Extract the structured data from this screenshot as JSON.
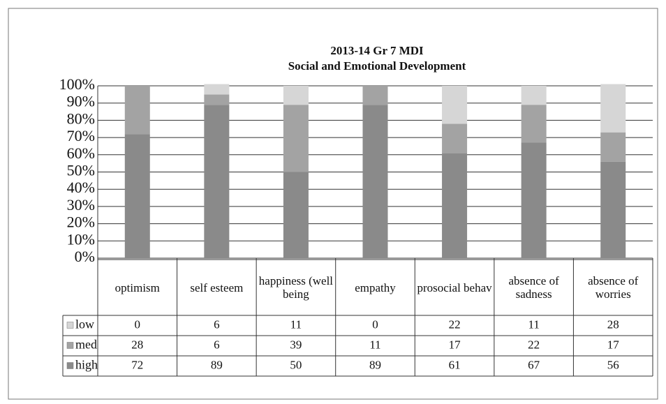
{
  "chart_data": {
    "type": "bar",
    "stacked": true,
    "title": "2013-14 Gr 7 MDI",
    "subtitle": "Social and Emotional Development",
    "categories": [
      "optimism",
      "self esteem",
      "happiness (well being",
      "empathy",
      "prosocial behav",
      "absence of sadness",
      "absence of worries"
    ],
    "series": [
      {
        "name": "low",
        "color": "#d6d6d6",
        "values": [
          0,
          6,
          11,
          0,
          22,
          11,
          28
        ]
      },
      {
        "name": "med",
        "color": "#a3a3a3",
        "values": [
          28,
          6,
          39,
          11,
          17,
          22,
          17
        ]
      },
      {
        "name": "high",
        "color": "#8a8a8a",
        "values": [
          72,
          89,
          50,
          89,
          61,
          67,
          56
        ]
      }
    ],
    "ylim": [
      0,
      100
    ],
    "yticks": [
      {
        "value": 0,
        "label": "0%"
      },
      {
        "value": 10,
        "label": "10%"
      },
      {
        "value": 20,
        "label": "20%"
      },
      {
        "value": 30,
        "label": "30%"
      },
      {
        "value": 40,
        "label": "40%"
      },
      {
        "value": 50,
        "label": "50%"
      },
      {
        "value": 60,
        "label": "60%"
      },
      {
        "value": 70,
        "label": "70%"
      },
      {
        "value": 80,
        "label": "80%"
      },
      {
        "value": 90,
        "label": "90%"
      },
      {
        "value": 100,
        "label": "100%"
      }
    ],
    "grid": true,
    "legend": "table"
  }
}
